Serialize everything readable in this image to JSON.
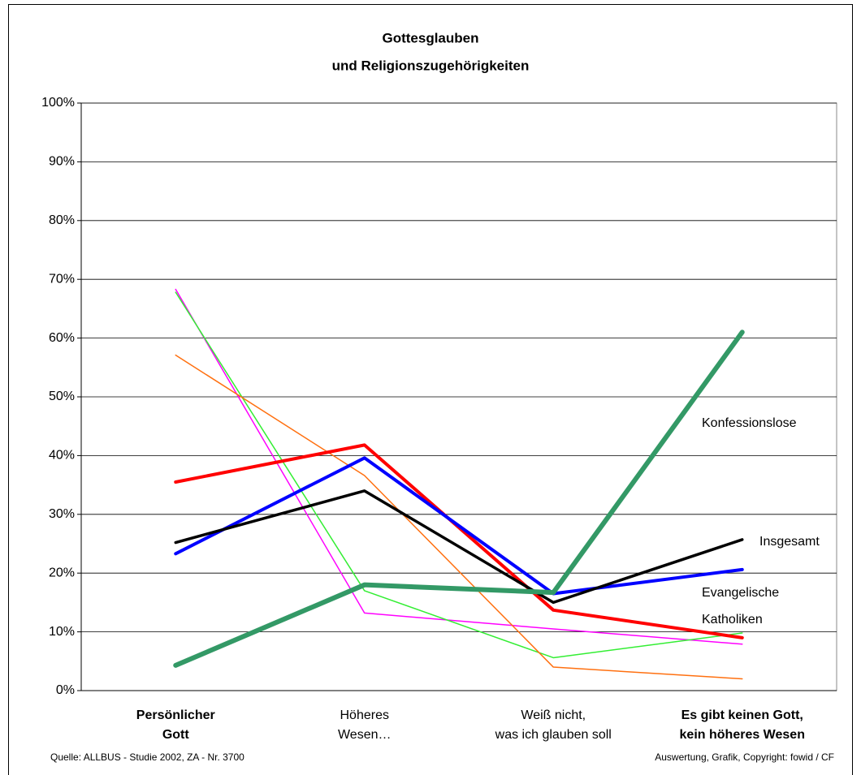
{
  "chart_data": {
    "type": "line",
    "title": [
      "Gottesglauben",
      "und Religionszugehörigkeiten"
    ],
    "source": "Quelle: ALLBUS - Studie 2002, ZA - Nr. 3700",
    "credit": "Auswertung, Grafik, Copyright: fowid / CF",
    "categories": [
      [
        "Persönlicher",
        "Gott"
      ],
      [
        "Höheres",
        "Wesen…"
      ],
      [
        "Weiß nicht,",
        "was ich glauben soll"
      ],
      [
        "Es gibt keinen Gott,",
        "kein höheres Wesen"
      ]
    ],
    "category_bold": [
      true,
      false,
      false,
      true
    ],
    "ylim": [
      0,
      100
    ],
    "yticks": [
      {
        "value": 0,
        "label": "0%"
      },
      {
        "value": 10,
        "label": "10%"
      },
      {
        "value": 20,
        "label": "20%"
      },
      {
        "value": 30,
        "label": "30%"
      },
      {
        "value": 40,
        "label": "40%"
      },
      {
        "value": 50,
        "label": "50%"
      },
      {
        "value": 60,
        "label": "60%"
      },
      {
        "value": 70,
        "label": "70%"
      },
      {
        "value": 80,
        "label": "80%"
      },
      {
        "value": 90,
        "label": "90%"
      },
      {
        "value": 100,
        "label": "100%"
      }
    ],
    "grid": true,
    "series": [
      {
        "name": null,
        "color": "#ff00ff",
        "width": 1.5,
        "values": [
          68.3,
          13.2,
          10.5,
          7.9
        ]
      },
      {
        "name": null,
        "color": "#33ee33",
        "width": 1.5,
        "values": [
          67.8,
          17,
          5.6,
          9.8
        ]
      },
      {
        "name": null,
        "color": "#ff7010",
        "width": 1.5,
        "values": [
          57.1,
          36.6,
          4,
          2
        ]
      },
      {
        "name": "Katholiken",
        "color": "#ff0000",
        "width": 4,
        "values": [
          35.5,
          41.8,
          13.7,
          9
        ]
      },
      {
        "name": "Evangelische",
        "color": "#0000ff",
        "width": 4,
        "values": [
          23.3,
          39.6,
          16.5,
          20.6
        ]
      },
      {
        "name": "Insgesamt",
        "color": "#000000",
        "width": 3.5,
        "values": [
          25.2,
          34,
          15,
          25.7
        ]
      },
      {
        "name": "Konfessionslose",
        "color": "#339966",
        "width": 6,
        "values": [
          4.3,
          18,
          16.7,
          61
        ]
      }
    ]
  }
}
